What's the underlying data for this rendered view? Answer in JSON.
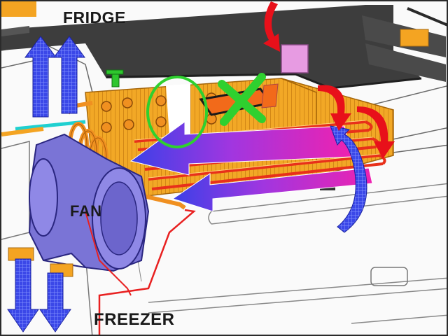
{
  "labels": {
    "fridge": "FRIDGE",
    "fan": "FAN",
    "freezer": "FREEZER"
  },
  "icons": {
    "up_arrows": "up-arrow-icon",
    "down_arrows": "down-arrow-icon",
    "curved_red_arrows": "curved-arrow-icon",
    "blocked_mark": "x-mark-icon",
    "highlight_circle": "circle-highlight-icon"
  },
  "colors": {
    "evaporator": "#f0a020",
    "coil_tubes": "#e8301a",
    "fan_housing": "#7a76d8",
    "airflow_arrow": "#3b47e6",
    "airflow_gradient_end": "#e820b8",
    "red_arrow": "#e8101a",
    "blocked_x": "#2fd02f",
    "highlight_circle": "#2fd02f",
    "shelf": "#3a3a3a"
  }
}
